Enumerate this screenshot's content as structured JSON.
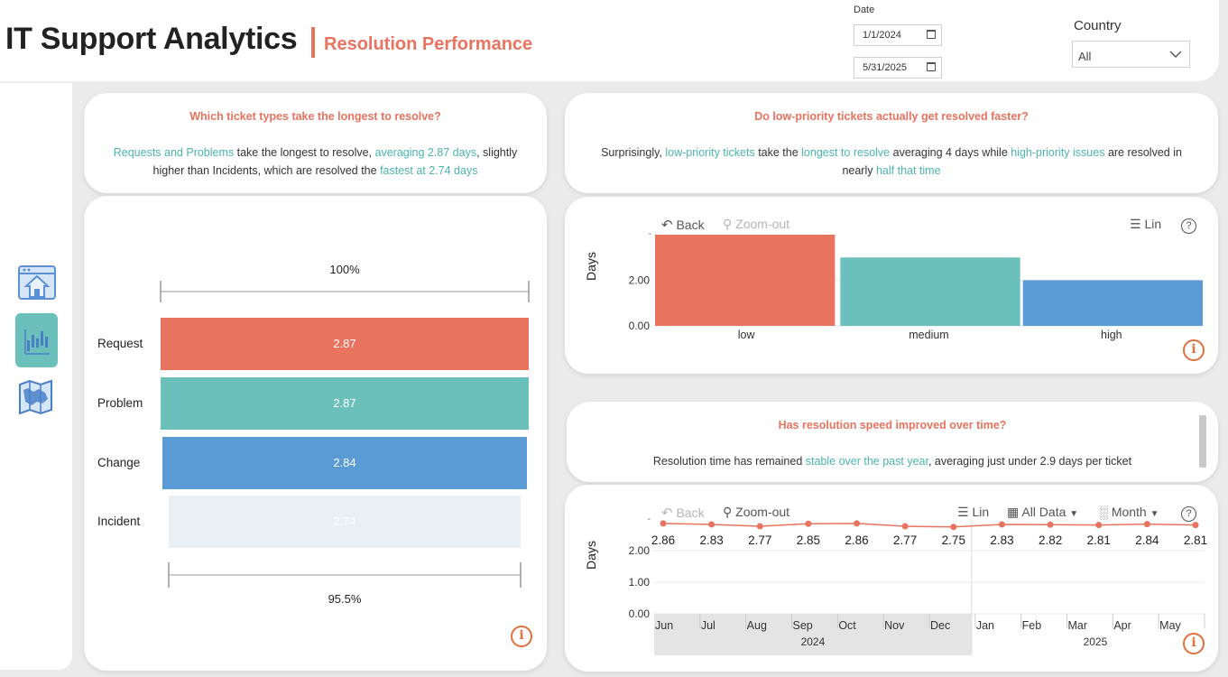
{
  "header": {
    "title": "IT Support Analytics",
    "subtitle": "Resolution Performance"
  },
  "filters": {
    "date_label": "Date",
    "date_start": "1/1/2024",
    "date_end": "5/31/2025",
    "country_label": "Country",
    "country_value": "All"
  },
  "nav": [
    {
      "icon": "home-icon",
      "active": false
    },
    {
      "icon": "bar-chart-icon",
      "active": true
    },
    {
      "icon": "map-icon",
      "active": false
    }
  ],
  "q1": {
    "question": "Which ticket types take the longest to resolve?",
    "line1_a": "Requests and Problems",
    "line1_b": " take the longest to resolve, ",
    "line1_c": "averaging 2.87 days",
    "line1_d": ", slightly",
    "line2_a": "higher than Incidents, which are resolved the ",
    "line2_b": "fastest at 2.74 days"
  },
  "funnel": {
    "top_pct": "100%",
    "bottom_pct": "95.5%",
    "rows": [
      {
        "category": "Request",
        "value": "2.87",
        "color": "#e8735f"
      },
      {
        "category": "Problem",
        "value": "2.87",
        "color": "#6cc0bb"
      },
      {
        "category": "Change",
        "value": "2.84",
        "color": "#5b9bd5"
      },
      {
        "category": "Incident",
        "value": "2.74",
        "color": "#e8f0f6"
      }
    ]
  },
  "q2": {
    "question": "Do low-priority tickets actually get resolved faster?",
    "t1": "Surprisingly, ",
    "t2": "low-priority tickets",
    "t3": " take the ",
    "t4": "longest to resolve",
    "t5": " averaging 4 days while ",
    "t6": "high-priority issues",
    "t7": " are resolved in",
    "t8": "nearly ",
    "t9": "half that time"
  },
  "toolbar1": {
    "back": "Back",
    "zoom_out": "Zoom-out",
    "scale": "Lin",
    "help": "?"
  },
  "q3": {
    "question": "Has resolution speed improved over time?",
    "t1": "Resolution time has remained ",
    "t2": "stable over the past year",
    "t3": ", averaging just under 2.9 days per ticket"
  },
  "toolbar2": {
    "back": "Back",
    "zoom_out": "Zoom-out",
    "scale": "Lin",
    "range": "All Data",
    "granularity": "Month",
    "help": "?"
  },
  "info_label": "i",
  "chart_data": [
    {
      "type": "bar",
      "categories": [
        "low",
        "medium",
        "high"
      ],
      "values": [
        4.0,
        3.0,
        2.0
      ],
      "colors": [
        "#e8735f",
        "#6cc0bb",
        "#5b9bd5"
      ],
      "ylabel": "Days",
      "yticks": [
        "0.00",
        "2.00"
      ],
      "ylim": [
        0,
        4.0
      ],
      "grid": true
    },
    {
      "type": "line",
      "x": [
        "Jun",
        "Jul",
        "Aug",
        "Sep",
        "Oct",
        "Nov",
        "Dec",
        "Jan",
        "Feb",
        "Mar",
        "Apr",
        "May"
      ],
      "years": [
        "2024",
        "2025"
      ],
      "values": [
        2.86,
        2.83,
        2.77,
        2.85,
        2.86,
        2.77,
        2.75,
        2.83,
        2.82,
        2.81,
        2.84,
        2.81
      ],
      "labels": [
        "2.86",
        "2.83",
        "2.77",
        "2.85",
        "2.86",
        "2.77",
        "2.75",
        "2.83",
        "2.82",
        "2.81",
        "2.84",
        "2.81"
      ],
      "color": "#e8735f",
      "ylabel": "Days",
      "yticks": [
        "0.00",
        "1.00",
        "2.00"
      ],
      "ylim": [
        0,
        3.0
      ],
      "grid": true
    }
  ]
}
